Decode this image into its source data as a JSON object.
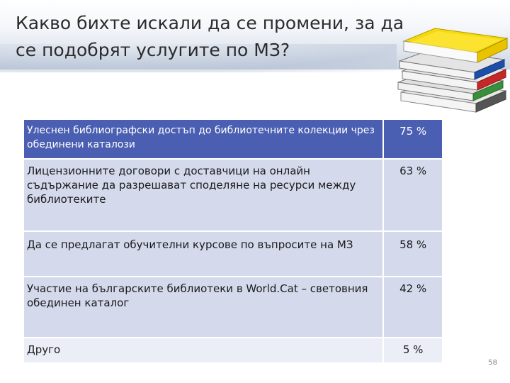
{
  "slide": {
    "title": "Какво бихте искали да се промени, за да се подобрят услугите по МЗ?",
    "page_number": "58"
  },
  "table": {
    "rows": [
      {
        "label": "Улеснен библиографски достъп до библиотечните колекции чрез обединени каталози",
        "value": "75 %"
      },
      {
        "label": "Лицензионните договори с доставчици на онлайн съдържание да разрешават споделяне на ресурси между библиотеките",
        "value": "63 %"
      },
      {
        "label": "Да се предлагат обучителни курсове по въпросите на МЗ",
        "value": "58 %"
      },
      {
        "label": "Участие на българските библиотеки в World.Cat – световния обединен каталог",
        "value": "42 %"
      },
      {
        "label": "Друго",
        "value": "5 %"
      }
    ]
  },
  "colors": {
    "header_row": "#4b5fb2",
    "body_row": "#d5d9ec",
    "last_row": "#eceef7"
  },
  "decoration": {
    "image": "stack-of-books-icon"
  }
}
